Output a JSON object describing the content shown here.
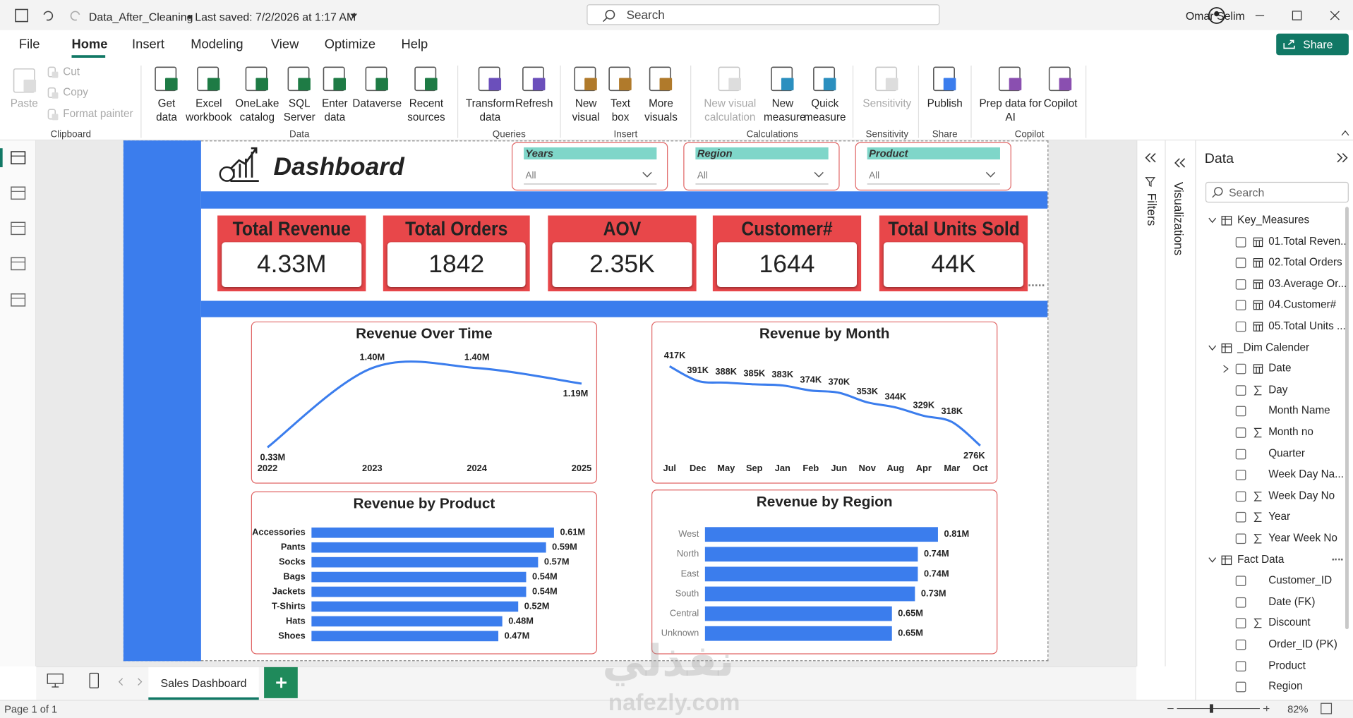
{
  "title_bar": {
    "file_name": "Data_After_Cleaning",
    "last_saved": "Last saved: 7/2/2026 at 1:17 AM",
    "search": "Search",
    "user": "Omar Selim"
  },
  "menu": {
    "tabs": [
      "File",
      "Home",
      "Insert",
      "Modeling",
      "View",
      "Optimize",
      "Help"
    ],
    "share": "Share"
  },
  "ribbon": {
    "groups": [
      {
        "label": "Clipboard",
        "buttons": [
          "Paste",
          "Cut",
          "Copy",
          "Format painter"
        ]
      },
      {
        "label": "Data",
        "buttons": [
          "Get data",
          "Excel workbook",
          "OneLake catalog",
          "SQL Server",
          "Enter data",
          "Dataverse",
          "Recent sources"
        ]
      },
      {
        "label": "Queries",
        "buttons": [
          "Transform data",
          "Refresh"
        ]
      },
      {
        "label": "Insert",
        "buttons": [
          "New visual",
          "Text box",
          "More visuals"
        ]
      },
      {
        "label": "Calculations",
        "buttons": [
          "New visual calculation",
          "New measure",
          "Quick measure"
        ]
      },
      {
        "label": "Sensitivity",
        "buttons": [
          "Sensitivity"
        ]
      },
      {
        "label": "Share",
        "buttons": [
          "Publish"
        ]
      },
      {
        "label": "Copilot",
        "buttons": [
          "Prep data for AI",
          "Copilot"
        ]
      }
    ]
  },
  "report": {
    "title": "Dashboard",
    "slicers": [
      {
        "label": "Years",
        "value": "All"
      },
      {
        "label": "Region",
        "value": "All"
      },
      {
        "label": "Product",
        "value": "All"
      }
    ],
    "kpis": [
      {
        "label": "Total Revenue",
        "value": "4.33M"
      },
      {
        "label": "Total Orders",
        "value": "1842"
      },
      {
        "label": "AOV",
        "value": "2.35K"
      },
      {
        "label": "Customer#",
        "value": "1644"
      },
      {
        "label": "Total Units Sold",
        "value": "44K"
      }
    ],
    "charts": [
      {
        "type": "line",
        "title": "Revenue Over Time",
        "categories": [
          "2022",
          "2023",
          "2024",
          "2025"
        ],
        "values": [
          0.33,
          1.4,
          1.4,
          1.19
        ],
        "value_labels": [
          "0.33M",
          "1.40M",
          "1.40M",
          "1.19M"
        ],
        "color": "#3b7ded"
      },
      {
        "type": "line",
        "title": "Revenue by Month",
        "categories": [
          "Jul",
          "Dec",
          "May",
          "Sep",
          "Jan",
          "Feb",
          "Jun",
          "Nov",
          "Aug",
          "Apr",
          "Mar",
          "Oct"
        ],
        "values": [
          417,
          391,
          388,
          385,
          383,
          374,
          370,
          353,
          344,
          329,
          318,
          276
        ],
        "value_labels": [
          "417K",
          "391K",
          "388K",
          "385K",
          "383K",
          "374K",
          "370K",
          "353K",
          "344K",
          "329K",
          "318K",
          "276K"
        ],
        "color": "#3b7ded"
      },
      {
        "type": "bar",
        "title": "Revenue by Product",
        "categories": [
          "Accessories",
          "Pants",
          "Socks",
          "Bags",
          "Jackets",
          "T-Shirts",
          "Hats",
          "Shoes"
        ],
        "values": [
          0.61,
          0.59,
          0.57,
          0.54,
          0.54,
          0.52,
          0.48,
          0.47
        ],
        "value_labels": [
          "0.61M",
          "0.59M",
          "0.57M",
          "0.54M",
          "0.54M",
          "0.52M",
          "0.48M",
          "0.47M"
        ],
        "color": "#3b7ded"
      },
      {
        "type": "bar",
        "title": "Revenue by Region",
        "categories": [
          "West",
          "North",
          "East",
          "South",
          "Central",
          "Unknown"
        ],
        "values": [
          0.81,
          0.74,
          0.74,
          0.73,
          0.65,
          0.65
        ],
        "value_labels": [
          "0.81M",
          "0.74M",
          "0.74M",
          "0.73M",
          "0.65M",
          "0.65M"
        ],
        "color": "#3b7ded"
      }
    ]
  },
  "panes": {
    "filters": "Filters",
    "visualizations": "Visualizations",
    "data": {
      "title": "Data",
      "search": "Search",
      "tables": [
        {
          "name": "Key_Measures",
          "fields": [
            "01.Total Reven...",
            "02.Total Orders",
            "03.Average Or...",
            "04.Customer#",
            "05.Total Units ..."
          ]
        },
        {
          "name": "_Dim Calender",
          "fields": [
            "Date",
            "Day",
            "Month Name",
            "Month no",
            "Quarter",
            "Week Day Na...",
            "Week Day No",
            "Year",
            "Year Week No"
          ]
        },
        {
          "name": "Fact Data",
          "fields": [
            "Customer_ID",
            "Date (FK)",
            "Discount",
            "Order_ID (PK)",
            "Product",
            "Region"
          ]
        }
      ]
    }
  },
  "footer": {
    "page_tab": "Sales Dashboard",
    "status": "Page 1 of 1",
    "zoom": "82%"
  },
  "watermark": {
    "arabic": "نفذلي",
    "latin": "nafezly.com"
  }
}
